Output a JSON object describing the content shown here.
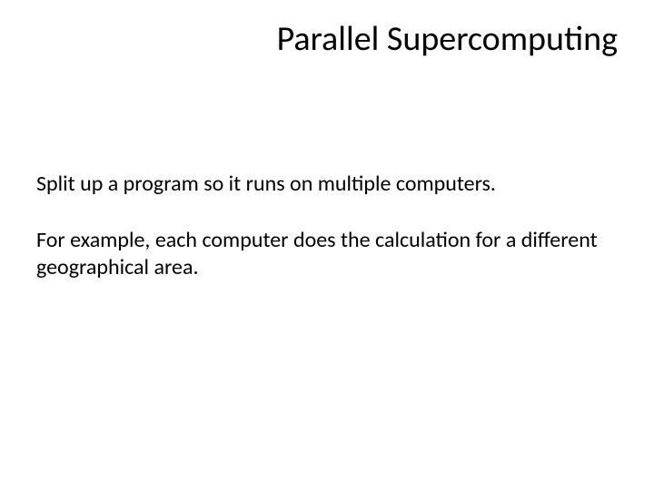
{
  "slide": {
    "title": "Parallel Supercomputing",
    "paragraph1": "Split up a program so it runs on multiple computers.",
    "paragraph2": "For example, each computer does the calculation for a different geographical area."
  },
  "styling": {
    "background_color": "#ffffff",
    "text_color": "#000000",
    "title_fontsize": 38,
    "body_fontsize": 24,
    "title_align": "right",
    "font_family": "Calibri"
  }
}
